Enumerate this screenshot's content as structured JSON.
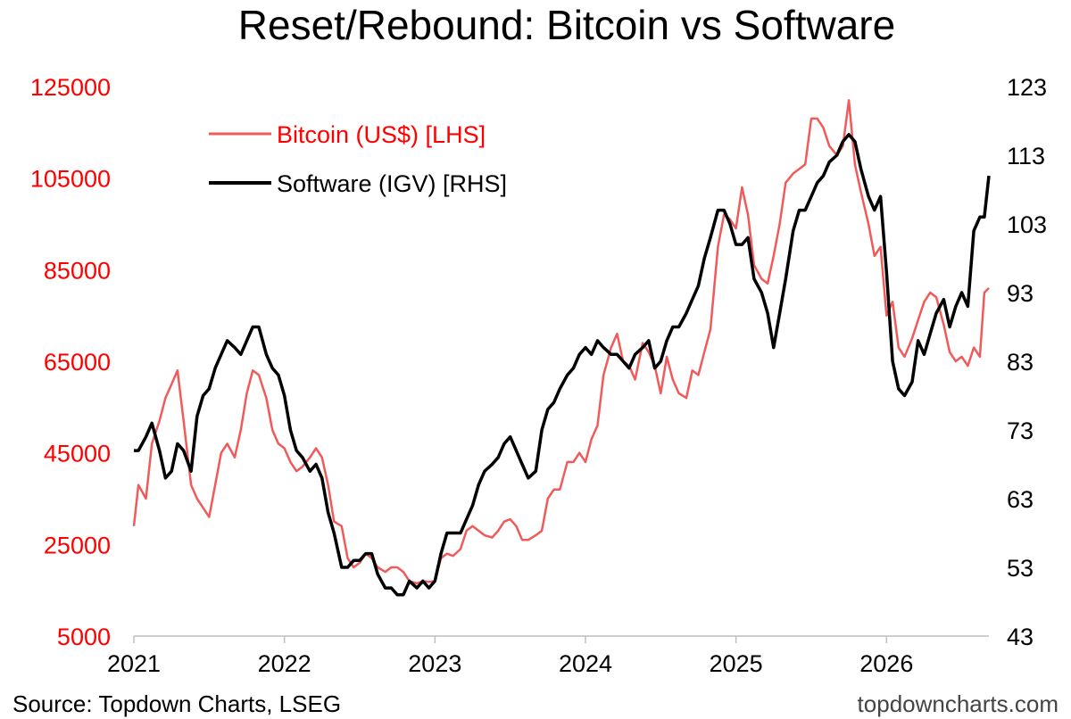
{
  "title": "Reset/Rebound: Bitcoin vs Software",
  "source": "Source: Topdown Charts, LSEG",
  "watermark": "topdowncharts.com",
  "colors": {
    "bitcoin": "#f05a5a",
    "software": "#000000",
    "left_axis": "#ff0000"
  },
  "chart_data": {
    "type": "line",
    "title": "Reset/Rebound: Bitcoin vs Software",
    "x_axis": {
      "ticks": [
        "2021",
        "2022",
        "2023",
        "2024",
        "2025",
        "2026"
      ],
      "range": [
        2021.0,
        2026.68
      ]
    },
    "y_left": {
      "ticks": [
        "125000",
        "105000",
        "85000",
        "65000",
        "45000",
        "25000",
        "5000"
      ],
      "range": [
        5000,
        125000
      ],
      "color": "red"
    },
    "y_right": {
      "ticks": [
        "123",
        "113",
        "103",
        "93",
        "83",
        "73",
        "63",
        "53",
        "43"
      ],
      "range": [
        43,
        123
      ]
    },
    "grid": false,
    "legend": {
      "placement": "top-left"
    },
    "series": [
      {
        "name": "Bitcoin (US$) [LHS]",
        "axis": "left",
        "color": "#f05a5a",
        "x": [
          2021.0,
          2021.03,
          2021.08,
          2021.12,
          2021.17,
          2021.21,
          2021.25,
          2021.29,
          2021.33,
          2021.38,
          2021.42,
          2021.46,
          2021.5,
          2021.54,
          2021.58,
          2021.62,
          2021.67,
          2021.71,
          2021.75,
          2021.79,
          2021.83,
          2021.88,
          2021.92,
          2021.96,
          2022.0,
          2022.04,
          2022.08,
          2022.12,
          2022.17,
          2022.21,
          2022.25,
          2022.29,
          2022.33,
          2022.38,
          2022.42,
          2022.46,
          2022.5,
          2022.54,
          2022.58,
          2022.62,
          2022.67,
          2022.71,
          2022.75,
          2022.79,
          2022.83,
          2022.88,
          2022.92,
          2022.96,
          2023.0,
          2023.04,
          2023.08,
          2023.12,
          2023.17,
          2023.21,
          2023.25,
          2023.29,
          2023.33,
          2023.38,
          2023.42,
          2023.46,
          2023.5,
          2023.54,
          2023.58,
          2023.62,
          2023.67,
          2023.71,
          2023.75,
          2023.79,
          2023.83,
          2023.88,
          2023.92,
          2023.96,
          2024.0,
          2024.04,
          2024.08,
          2024.12,
          2024.17,
          2024.21,
          2024.25,
          2024.29,
          2024.33,
          2024.38,
          2024.42,
          2024.46,
          2024.5,
          2024.54,
          2024.58,
          2024.62,
          2024.67,
          2024.71,
          2024.75,
          2024.79,
          2024.83,
          2024.88,
          2024.92,
          2024.96,
          2025.0,
          2025.04,
          2025.08,
          2025.12,
          2025.17,
          2025.21,
          2025.25,
          2025.29,
          2025.33,
          2025.38,
          2025.42,
          2025.46,
          2025.5,
          2025.54,
          2025.58,
          2025.62,
          2025.67,
          2025.71,
          2025.75,
          2025.79,
          2025.83,
          2025.88,
          2025.92,
          2025.96,
          2026.0,
          2026.04,
          2026.08,
          2026.12,
          2026.17,
          2026.21,
          2026.25,
          2026.29,
          2026.33,
          2026.38,
          2026.42,
          2026.46,
          2026.5,
          2026.54,
          2026.58,
          2026.62,
          2026.65,
          2026.68
        ],
        "values": [
          29000,
          38000,
          35000,
          47000,
          52000,
          57000,
          60000,
          63000,
          52000,
          38000,
          35000,
          33000,
          31000,
          38000,
          45000,
          47000,
          44000,
          50000,
          58000,
          63000,
          62000,
          57000,
          50000,
          47000,
          46000,
          43000,
          41000,
          42000,
          44000,
          46000,
          44000,
          38000,
          30000,
          29000,
          22000,
          20000,
          21000,
          23000,
          22000,
          20000,
          19000,
          20000,
          20000,
          19000,
          17000,
          16500,
          17000,
          16800,
          17000,
          22000,
          23000,
          22500,
          24000,
          28000,
          29000,
          28000,
          27000,
          26500,
          28000,
          30000,
          30500,
          29000,
          26000,
          26000,
          27000,
          28000,
          35000,
          37000,
          37000,
          43000,
          43000,
          45000,
          43000,
          48000,
          51000,
          62000,
          68000,
          71000,
          65000,
          64000,
          61000,
          69000,
          67000,
          64000,
          58000,
          66000,
          61000,
          58000,
          57000,
          63000,
          62000,
          67000,
          72000,
          90000,
          97000,
          96000,
          94000,
          103000,
          97000,
          86000,
          83000,
          82000,
          88000,
          95000,
          104000,
          106000,
          107000,
          108000,
          118000,
          118000,
          116000,
          112000,
          110000,
          112000,
          122000,
          108000,
          102000,
          95000,
          88000,
          90000,
          75000,
          78000,
          68000,
          66000,
          70000,
          74000,
          78000,
          80000,
          79000,
          73000,
          67000,
          65000,
          66000,
          64000,
          68000,
          66000,
          80000,
          81000
        ]
      },
      {
        "name": "Software (IGV) [RHS]",
        "axis": "right",
        "color": "#000000",
        "x": [
          2021.0,
          2021.03,
          2021.08,
          2021.12,
          2021.17,
          2021.21,
          2021.25,
          2021.29,
          2021.33,
          2021.38,
          2021.42,
          2021.46,
          2021.5,
          2021.54,
          2021.58,
          2021.62,
          2021.67,
          2021.71,
          2021.75,
          2021.79,
          2021.83,
          2021.88,
          2021.92,
          2021.96,
          2022.0,
          2022.04,
          2022.08,
          2022.12,
          2022.17,
          2022.21,
          2022.25,
          2022.29,
          2022.33,
          2022.38,
          2022.42,
          2022.46,
          2022.5,
          2022.54,
          2022.58,
          2022.62,
          2022.67,
          2022.71,
          2022.75,
          2022.79,
          2022.83,
          2022.88,
          2022.92,
          2022.96,
          2023.0,
          2023.04,
          2023.08,
          2023.12,
          2023.17,
          2023.21,
          2023.25,
          2023.29,
          2023.33,
          2023.38,
          2023.42,
          2023.46,
          2023.5,
          2023.54,
          2023.58,
          2023.62,
          2023.67,
          2023.71,
          2023.75,
          2023.79,
          2023.83,
          2023.88,
          2023.92,
          2023.96,
          2024.0,
          2024.04,
          2024.08,
          2024.12,
          2024.17,
          2024.21,
          2024.25,
          2024.29,
          2024.33,
          2024.38,
          2024.42,
          2024.46,
          2024.5,
          2024.54,
          2024.58,
          2024.62,
          2024.67,
          2024.71,
          2024.75,
          2024.79,
          2024.83,
          2024.88,
          2024.92,
          2024.96,
          2025.0,
          2025.04,
          2025.08,
          2025.12,
          2025.17,
          2025.21,
          2025.25,
          2025.29,
          2025.33,
          2025.38,
          2025.42,
          2025.46,
          2025.5,
          2025.54,
          2025.58,
          2025.62,
          2025.67,
          2025.71,
          2025.75,
          2025.79,
          2025.83,
          2025.88,
          2025.92,
          2025.96,
          2026.0,
          2026.04,
          2026.08,
          2026.12,
          2026.17,
          2026.21,
          2026.25,
          2026.29,
          2026.33,
          2026.38,
          2026.42,
          2026.46,
          2026.5,
          2026.54,
          2026.58,
          2026.62,
          2026.65,
          2026.68
        ],
        "values": [
          70,
          70,
          72,
          74,
          70,
          66,
          67,
          71,
          70,
          67,
          75,
          78,
          79,
          82,
          84,
          86,
          85,
          84,
          86,
          88,
          88,
          84,
          82,
          81,
          78,
          73,
          70,
          69,
          67,
          68,
          66,
          61,
          58,
          53,
          53,
          54,
          54,
          55,
          55,
          52,
          50,
          50,
          49,
          49,
          51,
          50,
          51,
          50,
          51,
          55,
          58,
          58,
          58,
          60,
          62,
          65,
          67,
          68,
          69,
          71,
          72,
          70,
          68,
          66,
          67,
          73,
          76,
          77,
          79,
          81,
          82,
          84,
          85,
          84,
          86,
          85,
          84,
          84,
          83,
          82,
          84,
          85,
          86,
          82,
          83,
          86,
          88,
          88,
          90,
          92,
          94,
          98,
          101,
          105,
          105,
          103,
          100,
          100,
          101,
          95,
          93,
          90,
          85,
          90,
          95,
          102,
          105,
          105,
          107,
          109,
          110,
          112,
          113,
          115,
          116,
          115,
          111,
          107,
          105,
          107,
          96,
          83,
          79,
          78,
          80,
          86,
          84,
          87,
          90,
          92,
          88,
          91,
          93,
          91,
          102,
          104,
          104,
          110
        ]
      }
    ]
  }
}
